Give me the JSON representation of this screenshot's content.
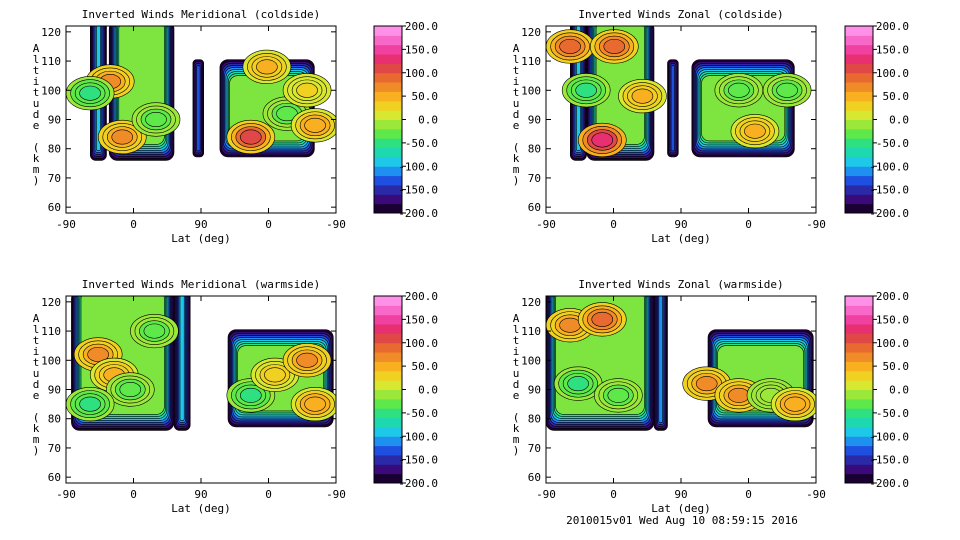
{
  "footer": "2010015v01 Wed Aug 10 08:59:15 2016",
  "colorbar": {
    "ticks": [
      "200.0",
      "150.0",
      "100.0",
      "50.0",
      "0.0",
      "-50.0",
      "-100.0",
      "-150.0",
      "-200.0"
    ],
    "colors": [
      "#1a0030",
      "#3a0a7a",
      "#2a2aa8",
      "#1f4fe0",
      "#1e90f0",
      "#1ec8e8",
      "#1ed8b0",
      "#2ee080",
      "#5ee84a",
      "#9ce83a",
      "#d8e830",
      "#f0d020",
      "#f8b020",
      "#f08c28",
      "#e86a30",
      "#e04848",
      "#e83070",
      "#f040a0",
      "#f868c8",
      "#ff90e8"
    ],
    "range": [
      -200,
      200
    ]
  },
  "chart_data": [
    {
      "type": "heatmap",
      "title": "Inverted Winds Meridional (coldside)",
      "xlabel": "Lat (deg)",
      "ylabel": "Altitude (km)",
      "xticks": [
        "-90",
        "0",
        "90",
        "0",
        "-90"
      ],
      "yticks": [
        "60",
        "70",
        "80",
        "90",
        "100",
        "110",
        "120"
      ],
      "ylim": [
        58,
        122
      ],
      "color_range": [
        -200,
        200
      ],
      "layout_id": "coldA",
      "accent_fields": [
        {
          "x": 55,
          "y": 103,
          "v": 60
        },
        {
          "x": 30,
          "y": 99,
          "v": -45
        },
        {
          "x": 70,
          "y": 84,
          "v": 65
        },
        {
          "x": 112,
          "y": 90,
          "v": -30
        },
        {
          "x": 230,
          "y": 84,
          "v": 110
        },
        {
          "x": 250,
          "y": 108,
          "v": 50
        },
        {
          "x": 275,
          "y": 92,
          "v": -40
        },
        {
          "x": 300,
          "y": 100,
          "v": 20
        },
        {
          "x": 310,
          "y": 88,
          "v": 55
        }
      ]
    },
    {
      "type": "heatmap",
      "title": "Inverted Winds Zonal (coldside)",
      "xlabel": "Lat (deg)",
      "ylabel": "Altitude (km)",
      "xticks": [
        "-90",
        "0",
        "90",
        "0",
        "-90"
      ],
      "yticks": [
        "60",
        "70",
        "80",
        "90",
        "100",
        "110",
        "120"
      ],
      "ylim": [
        58,
        122
      ],
      "color_range": [
        -200,
        200
      ],
      "layout_id": "coldB",
      "accent_fields": [
        {
          "x": 30,
          "y": 115,
          "v": 85
        },
        {
          "x": 85,
          "y": 115,
          "v": 95
        },
        {
          "x": 50,
          "y": 100,
          "v": -45
        },
        {
          "x": 70,
          "y": 83,
          "v": 135
        },
        {
          "x": 120,
          "y": 98,
          "v": 40
        },
        {
          "x": 240,
          "y": 100,
          "v": -30
        },
        {
          "x": 260,
          "y": 86,
          "v": 40
        },
        {
          "x": 300,
          "y": 100,
          "v": -40
        }
      ]
    },
    {
      "type": "heatmap",
      "title": "Inverted Winds Meridional (warmside)",
      "xlabel": "Lat (deg)",
      "ylabel": "Altitude (km)",
      "xticks": [
        "-90",
        "0",
        "90",
        "0",
        "-90"
      ],
      "yticks": [
        "60",
        "70",
        "80",
        "90",
        "100",
        "110",
        "120"
      ],
      "ylim": [
        58,
        122
      ],
      "color_range": [
        -200,
        200
      ],
      "layout_id": "warmA",
      "accent_fields": [
        {
          "x": 40,
          "y": 102,
          "v": 70
        },
        {
          "x": 60,
          "y": 95,
          "v": 45
        },
        {
          "x": 80,
          "y": 90,
          "v": -30
        },
        {
          "x": 30,
          "y": 85,
          "v": -50
        },
        {
          "x": 110,
          "y": 110,
          "v": -40
        },
        {
          "x": 230,
          "y": 88,
          "v": -45
        },
        {
          "x": 260,
          "y": 95,
          "v": 35
        },
        {
          "x": 300,
          "y": 100,
          "v": 65
        },
        {
          "x": 310,
          "y": 85,
          "v": 55
        }
      ]
    },
    {
      "type": "heatmap",
      "title": "Inverted Winds Zonal (warmside)",
      "xlabel": "Lat (deg)",
      "ylabel": "Altitude (km)",
      "xticks": [
        "-90",
        "0",
        "90",
        "0",
        "-90"
      ],
      "yticks": [
        "60",
        "70",
        "80",
        "90",
        "100",
        "110",
        "120"
      ],
      "ylim": [
        58,
        122
      ],
      "color_range": [
        -200,
        200
      ],
      "layout_id": "warmB",
      "accent_fields": [
        {
          "x": 30,
          "y": 112,
          "v": 75
        },
        {
          "x": 70,
          "y": 114,
          "v": 85
        },
        {
          "x": 40,
          "y": 92,
          "v": -50
        },
        {
          "x": 90,
          "y": 88,
          "v": -35
        },
        {
          "x": 200,
          "y": 92,
          "v": 60
        },
        {
          "x": 240,
          "y": 88,
          "v": 70
        },
        {
          "x": 280,
          "y": 88,
          "v": -20
        },
        {
          "x": 310,
          "y": 85,
          "v": 55
        }
      ]
    }
  ]
}
